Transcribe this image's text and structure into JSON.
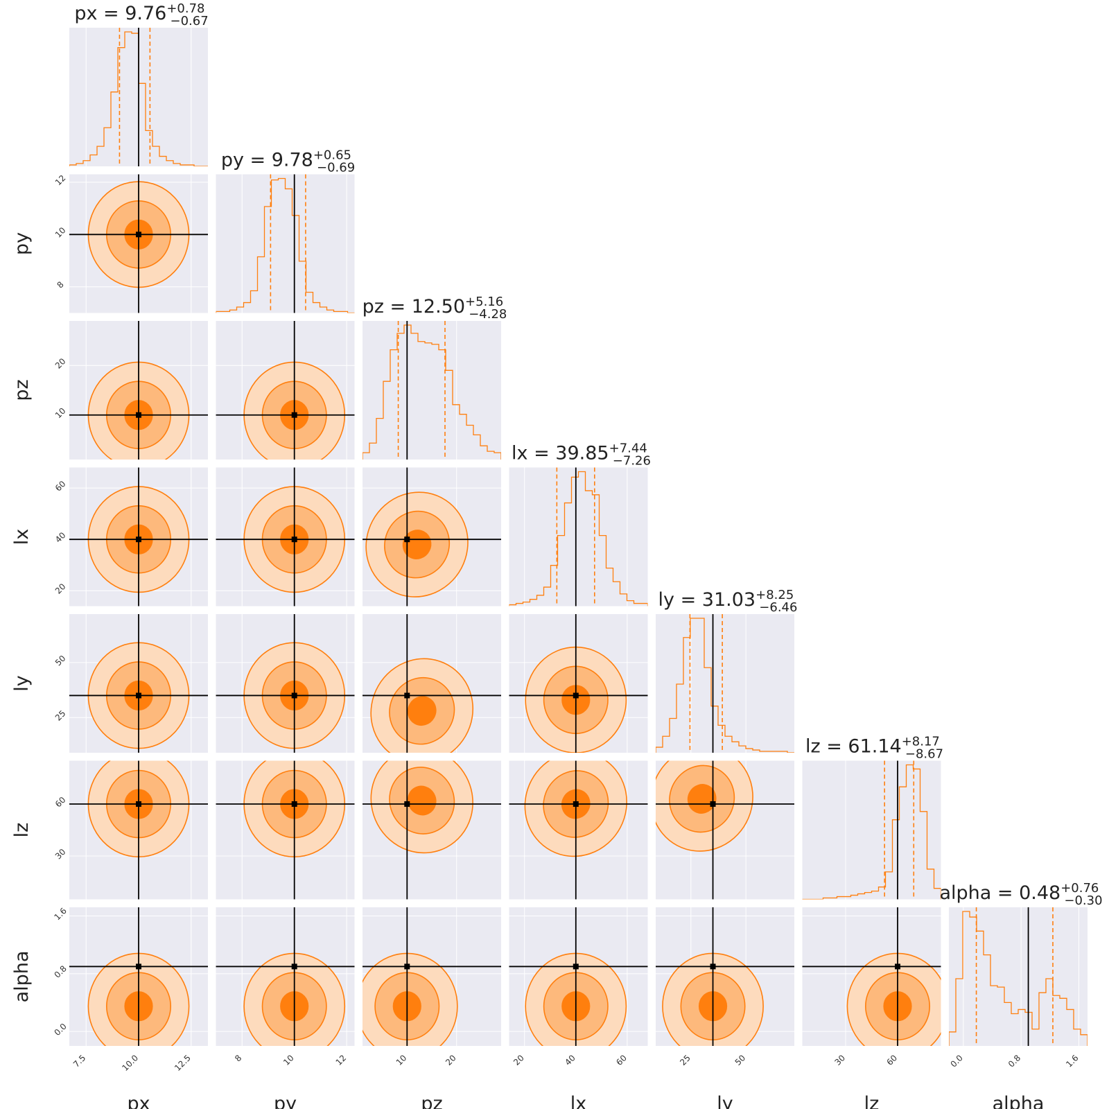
{
  "chart_data": {
    "type": "corner",
    "parameters": [
      "px",
      "py",
      "pz",
      "lx",
      "ly",
      "lz",
      "alpha"
    ],
    "truths": [
      10,
      10,
      10,
      40,
      35,
      60,
      0.9
    ],
    "ranges": [
      [
        6.7,
        13.3
      ],
      [
        7.0,
        12.3
      ],
      [
        1.0,
        29.0
      ],
      [
        14.0,
        68.0
      ],
      [
        9.0,
        72.0
      ],
      [
        5.0,
        85.0
      ],
      [
        -0.2,
        1.72
      ]
    ],
    "ticks": [
      [
        7.5,
        10.0,
        12.5
      ],
      [
        8,
        10,
        12
      ],
      [
        10,
        20
      ],
      [
        20,
        40,
        60
      ],
      [
        25,
        50
      ],
      [
        30,
        60
      ],
      [
        0.0,
        0.8,
        1.6
      ]
    ],
    "tick_labels": [
      [
        "7.5",
        "10.0",
        "12.5"
      ],
      [
        "8",
        "10",
        "12"
      ],
      [
        "10",
        "20"
      ],
      [
        "20",
        "40",
        "60"
      ],
      [
        "25",
        "50"
      ],
      [
        "30",
        "60"
      ],
      [
        "0.0",
        "0.8",
        "1.6"
      ]
    ],
    "titles": [
      {
        "name": "px",
        "median": "9.76",
        "plus": "+0.78",
        "minus": "−0.67"
      },
      {
        "name": "py",
        "median": "9.78",
        "plus": "+0.65",
        "minus": "−0.69"
      },
      {
        "name": "pz",
        "median": "12.50",
        "plus": "+5.16",
        "minus": "−4.28"
      },
      {
        "name": "lx",
        "median": "39.85",
        "plus": "+7.44",
        "minus": "−7.26"
      },
      {
        "name": "ly",
        "median": "31.03",
        "plus": "+8.25",
        "minus": "−6.46"
      },
      {
        "name": "lz",
        "median": "61.14",
        "plus": "+8.17",
        "minus": "−8.67"
      },
      {
        "name": "alpha",
        "median": "0.48",
        "plus": "+0.76",
        "minus": "−0.30"
      }
    ],
    "quantiles": [
      [
        9.09,
        10.54
      ],
      [
        9.09,
        10.43
      ],
      [
        8.22,
        17.66
      ],
      [
        32.59,
        47.29
      ],
      [
        24.57,
        39.28
      ],
      [
        52.47,
        69.31
      ],
      [
        0.18,
        1.24
      ]
    ],
    "histograms": [
      {
        "bins": [
          6.7,
          13.3
        ],
        "counts": [
          1,
          2,
          4,
          8,
          14,
          27,
          52,
          83,
          94,
          93,
          58,
          25,
          14,
          7,
          4,
          2,
          1,
          1,
          0,
          0
        ]
      },
      {
        "bins": [
          7.0,
          12.3
        ],
        "counts": [
          1,
          1,
          2,
          4,
          7,
          15,
          38,
          72,
          90,
          91,
          84,
          66,
          35,
          14,
          7,
          4,
          2,
          1,
          1,
          0
        ]
      },
      {
        "bins": [
          1.0,
          29.0
        ],
        "counts": [
          5,
          12,
          30,
          57,
          80,
          92,
          98,
          92,
          86,
          85,
          84,
          80,
          65,
          40,
          33,
          25,
          18,
          10,
          6,
          5
        ]
      },
      {
        "bins": [
          14.0,
          68.0
        ],
        "counts": [
          1,
          2,
          3,
          5,
          8,
          14,
          30,
          52,
          76,
          95,
          99,
          85,
          82,
          52,
          28,
          18,
          9,
          4,
          2,
          2
        ]
      },
      {
        "bins": [
          9.0,
          72.0
        ],
        "counts": [
          4,
          12,
          25,
          50,
          84,
          98,
          98,
          62,
          34,
          20,
          12,
          8,
          5,
          3,
          2,
          1,
          1,
          1,
          1,
          0
        ]
      },
      {
        "bins": [
          5.0,
          85.0
        ],
        "counts": [
          0,
          0,
          0,
          1,
          1,
          2,
          2,
          3,
          4,
          5,
          6,
          9,
          20,
          58,
          82,
          98,
          95,
          64,
          22,
          8
        ]
      },
      {
        "bins": [
          -0.2,
          1.72
        ],
        "counts": [
          10,
          48,
          96,
          92,
          82,
          65,
          43,
          42,
          31,
          23,
          26,
          24,
          12,
          38,
          48,
          36,
          34,
          26,
          12,
          8
        ]
      }
    ],
    "contour_levels": [
      "0.39",
      "0.86",
      "0.99"
    ],
    "colors": {
      "line": "#ff7f0e",
      "fill_outer": "#fddbbd",
      "fill_mid": "#fdb97c",
      "fill_inner": "#ff7f0e",
      "truth": "#000000",
      "panel_bg": "#eaeaf2",
      "grid": "#ffffff"
    }
  }
}
